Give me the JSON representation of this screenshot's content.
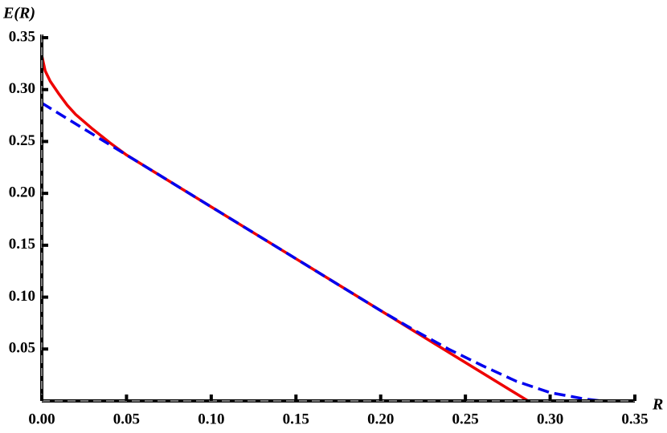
{
  "chart_data": {
    "type": "line",
    "y_label": "E(R)",
    "x_label": "R",
    "xlim": [
      0,
      0.35
    ],
    "ylim": [
      0,
      0.35
    ],
    "xticks": [
      {
        "value": 0,
        "label": "0.00"
      },
      0.05,
      {
        "value": 0.1,
        "label": "0.10"
      },
      0.15,
      {
        "value": 0.2,
        "label": "0.20"
      },
      0.25,
      {
        "value": 0.3,
        "label": "0.30"
      },
      0.35
    ],
    "yticks": [
      0.05,
      {
        "value": 0.1,
        "label": "0.10"
      },
      0.15,
      {
        "value": 0.2,
        "label": "0.20"
      },
      0.25,
      {
        "value": 0.3,
        "label": "0.30"
      },
      0.35
    ],
    "series": [
      {
        "color": "#ee0000",
        "dash": "solid",
        "x": [
          0,
          0.002,
          0.005,
          0.01,
          0.015,
          0.02,
          0.03,
          0.04,
          0.05,
          0.1,
          0.15,
          0.2,
          0.25,
          0.287
        ],
        "values": [
          0.333,
          0.318,
          0.308,
          0.296,
          0.285,
          0.276,
          0.262,
          0.249,
          0.237,
          0.187,
          0.137,
          0.087,
          0.037,
          0
        ]
      },
      {
        "color": "#0000ee",
        "dash": "dashed",
        "x": [
          0,
          0.05,
          0.1,
          0.15,
          0.2,
          0.22,
          0.24,
          0.26,
          0.28,
          0.3,
          0.32,
          0.33
        ],
        "values": [
          0.287,
          0.237,
          0.187,
          0.137,
          0.087,
          0.068,
          0.05,
          0.034,
          0.019,
          0.008,
          0.002,
          0
        ]
      }
    ]
  }
}
